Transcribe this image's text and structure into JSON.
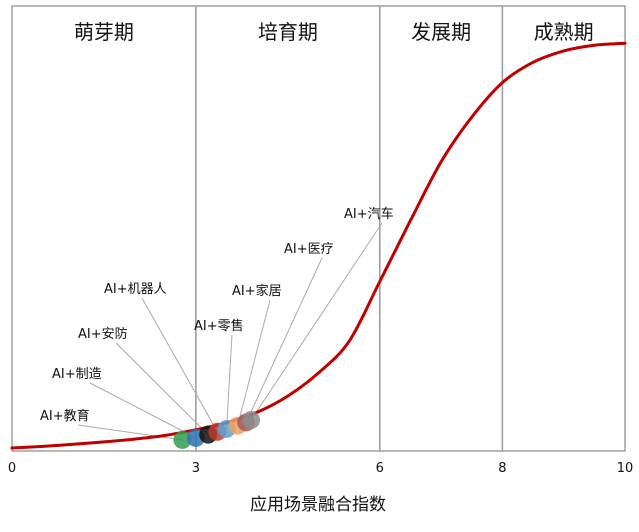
{
  "chart_data": {
    "type": "line",
    "title": "",
    "xlabel": "应用场景融合指数",
    "ylabel": "",
    "xlim": [
      0,
      10
    ],
    "ylim": [
      0,
      1
    ],
    "x_ticks": [
      "0",
      "3",
      "6",
      "8",
      "10"
    ],
    "x_tick_values": [
      0,
      3,
      6,
      8,
      10
    ],
    "grid": false,
    "stages": [
      {
        "label": "萌芽期",
        "from": 0,
        "to": 3
      },
      {
        "label": "培育期",
        "from": 3,
        "to": 6
      },
      {
        "label": "发展期",
        "from": 6,
        "to": 8
      },
      {
        "label": "成熟期",
        "from": 8,
        "to": 10
      }
    ],
    "series": [
      {
        "color": "#c00000",
        "x": [
          0,
          0.5,
          1,
          1.5,
          2,
          2.5,
          3,
          3.5,
          4,
          4.5,
          5,
          5.5,
          6,
          6.5,
          7,
          7.5,
          8,
          8.5,
          9,
          9.5,
          10
        ],
        "y": [
          0.0,
          0.004,
          0.009,
          0.015,
          0.022,
          0.031,
          0.045,
          0.062,
          0.088,
          0.128,
          0.185,
          0.263,
          0.41,
          0.56,
          0.705,
          0.815,
          0.9,
          0.95,
          0.978,
          0.992,
          0.997
        ]
      }
    ],
    "annotations": [
      {
        "label": "AI+教育",
        "x": 2.78,
        "y": 0.015,
        "color": "#2e9e4f"
      },
      {
        "label": "AI+制造",
        "x": 3.0,
        "y": 0.02,
        "color": "#2e74b5"
      },
      {
        "label": "AI+安防",
        "x": 3.2,
        "y": 0.028,
        "color": "#111111"
      },
      {
        "label": "AI+机器人",
        "x": 3.35,
        "y": 0.035,
        "color": "#c0392b"
      },
      {
        "label": "AI+零售",
        "x": 3.5,
        "y": 0.042,
        "color": "#5ba3d0"
      },
      {
        "label": "AI+家居",
        "x": 3.68,
        "y": 0.05,
        "color": "#f0a060"
      },
      {
        "label": "AI+医疗",
        "x": 3.82,
        "y": 0.058,
        "color": "#a05a5a"
      },
      {
        "label": "AI+汽车",
        "x": 3.9,
        "y": 0.064,
        "color": "#8c8c8c"
      }
    ]
  }
}
